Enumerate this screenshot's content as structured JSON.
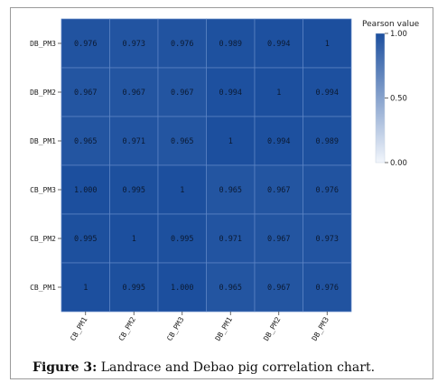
{
  "chart_data": {
    "type": "heatmap",
    "x_categories": [
      "CB_PM1",
      "CB_PM2",
      "CB_PM3",
      "DB_PM1",
      "DB_PM2",
      "DB_PM3"
    ],
    "y_categories": [
      "DB_PM3",
      "DB_PM2",
      "DB_PM1",
      "CB_PM3",
      "CB_PM2",
      "CB_PM1"
    ],
    "cell_labels": [
      [
        "0.976",
        "0.973",
        "0.976",
        "0.989",
        "0.994",
        "1"
      ],
      [
        "0.967",
        "0.967",
        "0.967",
        "0.994",
        "1",
        "0.994"
      ],
      [
        "0.965",
        "0.971",
        "0.965",
        "1",
        "0.994",
        "0.989"
      ],
      [
        "1.000",
        "0.995",
        "1",
        "0.965",
        "0.967",
        "0.976"
      ],
      [
        "0.995",
        "1",
        "0.995",
        "0.971",
        "0.967",
        "0.973"
      ],
      [
        "1",
        "0.995",
        "1.000",
        "0.965",
        "0.967",
        "0.976"
      ]
    ],
    "values": [
      [
        0.976,
        0.973,
        0.976,
        0.989,
        0.994,
        1
      ],
      [
        0.967,
        0.967,
        0.967,
        0.994,
        1,
        0.994
      ],
      [
        0.965,
        0.971,
        0.965,
        1,
        0.994,
        0.989
      ],
      [
        1.0,
        0.995,
        1,
        0.965,
        0.967,
        0.976
      ],
      [
        0.995,
        1,
        0.995,
        0.971,
        0.967,
        0.973
      ],
      [
        1,
        0.995,
        1.0,
        0.965,
        0.967,
        0.976
      ]
    ],
    "color_scale": {
      "title": "Pearson value",
      "ticks": [
        "1.00",
        "0.50",
        "0.00"
      ],
      "tick_values": [
        1.0,
        0.5,
        0.0
      ],
      "range": [
        0,
        1
      ],
      "low_color": "#f2f6fc",
      "high_color": "#1c4f9e"
    },
    "legend_position": "top-right",
    "grid": true
  },
  "caption": {
    "label": "Figure 3:",
    "text": " Landrace and Debao pig correlation chart."
  }
}
